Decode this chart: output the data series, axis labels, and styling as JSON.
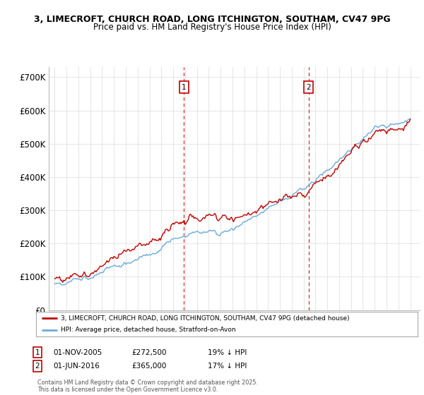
{
  "title_line1": "3, LIMECROFT, CHURCH ROAD, LONG ITCHINGTON, SOUTHAM, CV47 9PG",
  "title_line2": "Price paid vs. HM Land Registry's House Price Index (HPI)",
  "yticks": [
    0,
    100000,
    200000,
    300000,
    400000,
    500000,
    600000,
    700000
  ],
  "ytick_labels": [
    "£0",
    "£100K",
    "£200K",
    "£300K",
    "£400K",
    "£500K",
    "£600K",
    "£700K"
  ],
  "hpi_color": "#6aabdc",
  "price_color": "#c00000",
  "sale1_year": 2005.917,
  "sale2_year": 2016.417,
  "sale1_date": "01-NOV-2005",
  "sale1_price": "£272,500",
  "sale1_pct": "19% ↓ HPI",
  "sale2_date": "01-JUN-2016",
  "sale2_price": "£365,000",
  "sale2_pct": "17% ↓ HPI",
  "legend_label1": "3, LIMECROFT, CHURCH ROAD, LONG ITCHINGTON, SOUTHAM, CV47 9PG (detached house)",
  "legend_label2": "HPI: Average price, detached house, Stratford-on-Avon",
  "footer": "Contains HM Land Registry data © Crown copyright and database right 2025.\nThis data is licensed under the Open Government Licence v3.0.",
  "background_color": "#ffffff",
  "grid_color": "#e0e0e0",
  "xmin": 1994.5,
  "xmax": 2025.8,
  "ymin": 0,
  "ymax": 730000
}
